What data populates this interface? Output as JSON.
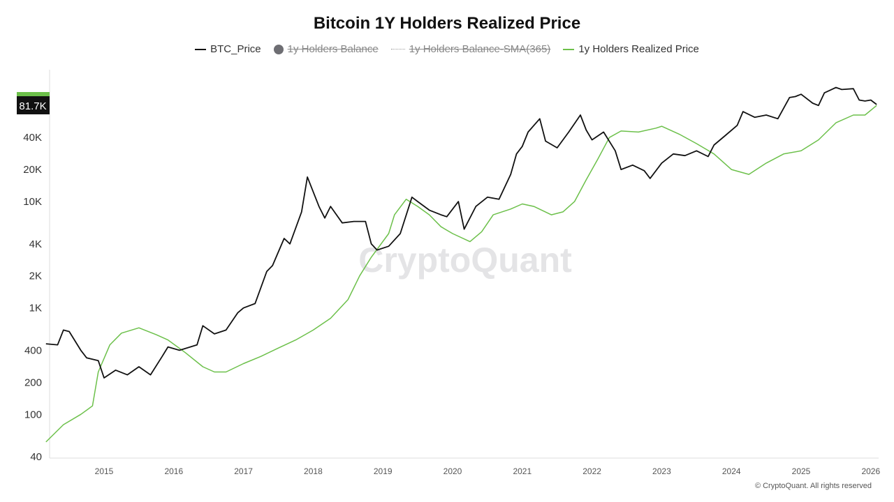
{
  "title": "Bitcoin 1Y Holders Realized Price",
  "legend": [
    {
      "label": "BTC_Price",
      "style": "line",
      "color": "#111111",
      "enabled": true
    },
    {
      "label": "1y Holders Balance",
      "style": "dot",
      "color": "#6e6e73",
      "enabled": false
    },
    {
      "label": "1y Holders Balance-SMA(365)",
      "style": "dotted",
      "color": "#999999",
      "enabled": false
    },
    {
      "label": "1y Holders Realized Price",
      "style": "line",
      "color": "#6cc04a",
      "enabled": true
    }
  ],
  "watermark": "CryptoQuant",
  "footer": "© CryptoQuant. All rights reserved",
  "chart_data": {
    "type": "line",
    "title": "Bitcoin 1Y Holders Realized Price",
    "y_scale": "log",
    "ylim": [
      40,
      174000
    ],
    "xlim": [
      "2014-03",
      "2026-02"
    ],
    "y_ticks": [
      {
        "v": 40,
        "label": "40"
      },
      {
        "v": 100,
        "label": "100"
      },
      {
        "v": 200,
        "label": "200"
      },
      {
        "v": 400,
        "label": "400"
      },
      {
        "v": 1000,
        "label": "1K"
      },
      {
        "v": 2000,
        "label": "2K"
      },
      {
        "v": 4000,
        "label": "4K"
      },
      {
        "v": 10000,
        "label": "10K"
      },
      {
        "v": 20000,
        "label": "20K"
      },
      {
        "v": 40000,
        "label": "40K"
      }
    ],
    "x_ticks": [
      "2015",
      "2016",
      "2017",
      "2018",
      "2019",
      "2020",
      "2021",
      "2022",
      "2023",
      "2024",
      "2025",
      "2026"
    ],
    "current_value_label": "81.7K",
    "grid": false,
    "legend_position": "top",
    "series": [
      {
        "name": "BTC_Price",
        "color": "#111111",
        "points": [
          [
            "2014-03",
            460
          ],
          [
            "2014-05",
            450
          ],
          [
            "2014-06",
            620
          ],
          [
            "2014-07",
            600
          ],
          [
            "2014-09",
            400
          ],
          [
            "2014-10",
            340
          ],
          [
            "2014-12",
            320
          ],
          [
            "2015-01",
            220
          ],
          [
            "2015-03",
            260
          ],
          [
            "2015-05",
            235
          ],
          [
            "2015-07",
            280
          ],
          [
            "2015-09",
            235
          ],
          [
            "2015-11",
            350
          ],
          [
            "2015-12",
            430
          ],
          [
            "2016-02",
            400
          ],
          [
            "2016-05",
            450
          ],
          [
            "2016-06",
            680
          ],
          [
            "2016-08",
            570
          ],
          [
            "2016-10",
            620
          ],
          [
            "2016-12",
            900
          ],
          [
            "2017-01",
            1000
          ],
          [
            "2017-03",
            1100
          ],
          [
            "2017-05",
            2200
          ],
          [
            "2017-06",
            2500
          ],
          [
            "2017-08",
            4500
          ],
          [
            "2017-09",
            4000
          ],
          [
            "2017-11",
            8000
          ],
          [
            "2017-12",
            17000
          ],
          [
            "2018-02",
            9000
          ],
          [
            "2018-03",
            7000
          ],
          [
            "2018-04",
            9000
          ],
          [
            "2018-06",
            6300
          ],
          [
            "2018-08",
            6500
          ],
          [
            "2018-10",
            6500
          ],
          [
            "2018-11",
            4000
          ],
          [
            "2018-12",
            3500
          ],
          [
            "2019-02",
            3800
          ],
          [
            "2019-04",
            5000
          ],
          [
            "2019-06",
            11000
          ],
          [
            "2019-07",
            10000
          ],
          [
            "2019-09",
            8300
          ],
          [
            "2019-11",
            7500
          ],
          [
            "2019-12",
            7200
          ],
          [
            "2020-02",
            10000
          ],
          [
            "2020-03",
            5500
          ],
          [
            "2020-05",
            9000
          ],
          [
            "2020-07",
            11000
          ],
          [
            "2020-09",
            10500
          ],
          [
            "2020-11",
            18000
          ],
          [
            "2020-12",
            28000
          ],
          [
            "2021-01",
            33000
          ],
          [
            "2021-02",
            45000
          ],
          [
            "2021-04",
            60000
          ],
          [
            "2021-05",
            37000
          ],
          [
            "2021-07",
            32000
          ],
          [
            "2021-09",
            45000
          ],
          [
            "2021-11",
            65000
          ],
          [
            "2021-12",
            47000
          ],
          [
            "2022-01",
            38000
          ],
          [
            "2022-03",
            45000
          ],
          [
            "2022-05",
            30000
          ],
          [
            "2022-06",
            20000
          ],
          [
            "2022-08",
            22000
          ],
          [
            "2022-10",
            19500
          ],
          [
            "2022-11",
            16500
          ],
          [
            "2023-01",
            23000
          ],
          [
            "2023-03",
            28000
          ],
          [
            "2023-05",
            27000
          ],
          [
            "2023-07",
            30000
          ],
          [
            "2023-09",
            26500
          ],
          [
            "2023-10",
            34000
          ],
          [
            "2023-12",
            42000
          ],
          [
            "2024-02",
            52000
          ],
          [
            "2024-03",
            70000
          ],
          [
            "2024-05",
            62000
          ],
          [
            "2024-07",
            65000
          ],
          [
            "2024-09",
            60000
          ],
          [
            "2024-11",
            95000
          ],
          [
            "2024-12",
            97000
          ],
          [
            "2025-01",
            102000
          ],
          [
            "2025-03",
            84000
          ],
          [
            "2025-04",
            80000
          ],
          [
            "2025-05",
            105000
          ],
          [
            "2025-07",
            118000
          ],
          [
            "2025-08",
            113000
          ],
          [
            "2025-10",
            115000
          ],
          [
            "2025-11",
            90000
          ],
          [
            "2025-12",
            88000
          ],
          [
            "2026-01",
            90000
          ],
          [
            "2026-02",
            81700
          ]
        ]
      },
      {
        "name": "1y Holders Realized Price",
        "color": "#6cc04a",
        "points": [
          [
            "2014-03",
            55
          ],
          [
            "2014-06",
            80
          ],
          [
            "2014-09",
            100
          ],
          [
            "2014-11",
            120
          ],
          [
            "2014-12",
            250
          ],
          [
            "2015-02",
            450
          ],
          [
            "2015-04",
            580
          ],
          [
            "2015-07",
            650
          ],
          [
            "2015-10",
            560
          ],
          [
            "2015-12",
            500
          ],
          [
            "2016-03",
            380
          ],
          [
            "2016-06",
            280
          ],
          [
            "2016-08",
            250
          ],
          [
            "2016-10",
            250
          ],
          [
            "2017-01",
            300
          ],
          [
            "2017-04",
            350
          ],
          [
            "2017-07",
            420
          ],
          [
            "2017-10",
            500
          ],
          [
            "2018-01",
            620
          ],
          [
            "2018-04",
            800
          ],
          [
            "2018-07",
            1200
          ],
          [
            "2018-09",
            2000
          ],
          [
            "2018-11",
            3000
          ],
          [
            "2019-02",
            5000
          ],
          [
            "2019-03",
            7500
          ],
          [
            "2019-05",
            10500
          ],
          [
            "2019-07",
            9000
          ],
          [
            "2019-09",
            7500
          ],
          [
            "2019-11",
            5800
          ],
          [
            "2020-01",
            5000
          ],
          [
            "2020-04",
            4200
          ],
          [
            "2020-06",
            5200
          ],
          [
            "2020-08",
            7500
          ],
          [
            "2020-11",
            8500
          ],
          [
            "2021-01",
            9500
          ],
          [
            "2021-03",
            9000
          ],
          [
            "2021-06",
            7500
          ],
          [
            "2021-08",
            8000
          ],
          [
            "2021-10",
            10000
          ],
          [
            "2021-12",
            16000
          ],
          [
            "2022-02",
            25000
          ],
          [
            "2022-04",
            40000
          ],
          [
            "2022-06",
            46000
          ],
          [
            "2022-09",
            45000
          ],
          [
            "2022-12",
            49000
          ],
          [
            "2023-01",
            51000
          ],
          [
            "2023-04",
            43000
          ],
          [
            "2023-07",
            35000
          ],
          [
            "2023-10",
            28000
          ],
          [
            "2024-01",
            20000
          ],
          [
            "2024-04",
            18000
          ],
          [
            "2024-07",
            23000
          ],
          [
            "2024-10",
            28000
          ],
          [
            "2025-01",
            30000
          ],
          [
            "2025-04",
            38000
          ],
          [
            "2025-07",
            55000
          ],
          [
            "2025-10",
            65000
          ],
          [
            "2025-12",
            65000
          ],
          [
            "2026-02",
            80000
          ]
        ]
      }
    ]
  }
}
